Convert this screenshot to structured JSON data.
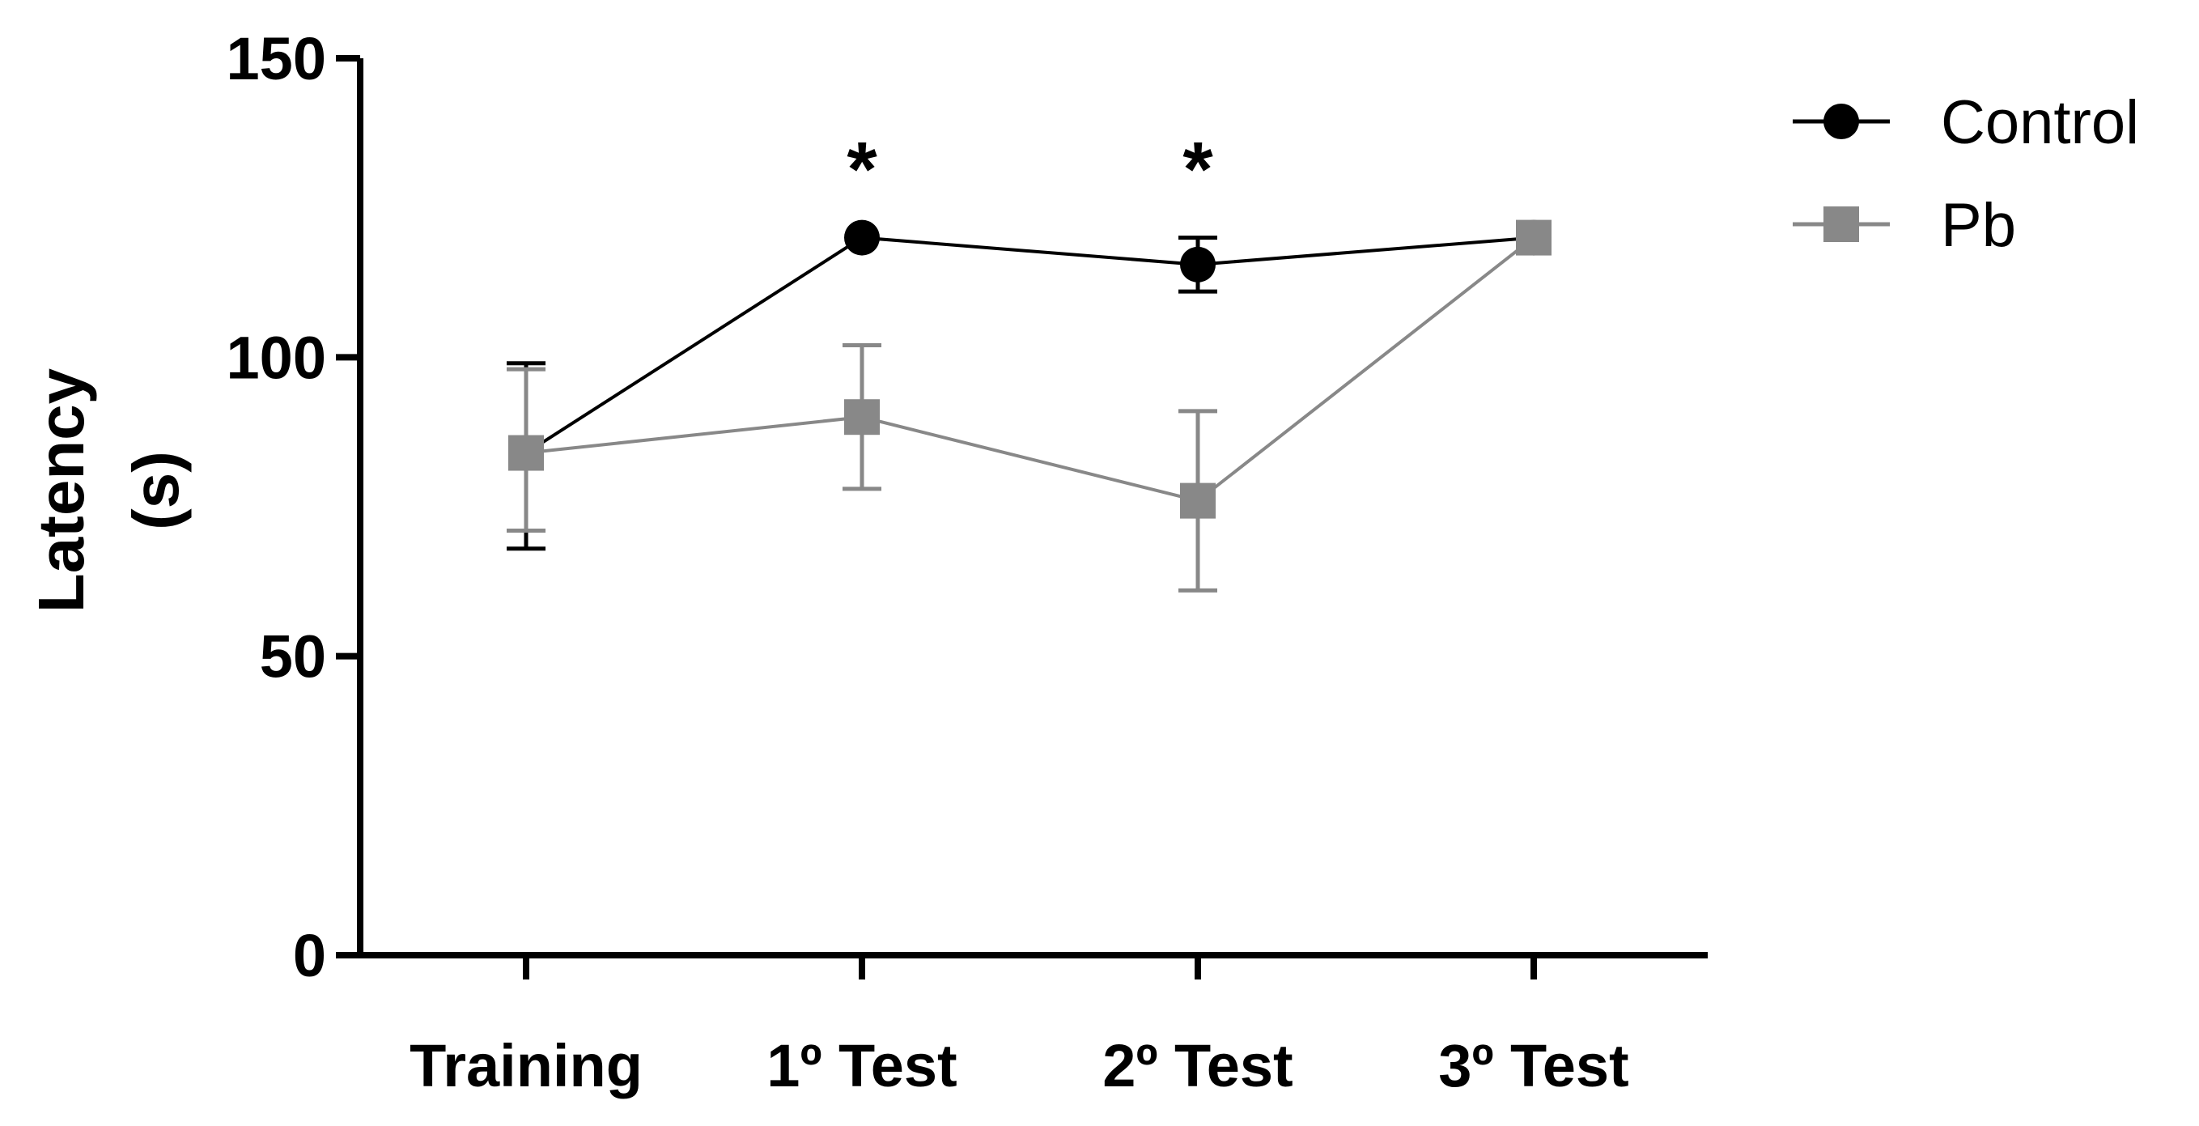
{
  "chart_data": {
    "type": "line",
    "title": "",
    "xlabel": "",
    "ylabel": [
      "Latency",
      "(s)"
    ],
    "categories": [
      "Training",
      "1º Test",
      "2º Test",
      "3º Test"
    ],
    "ylim": [
      0,
      150
    ],
    "yticks": [
      0,
      50,
      100,
      150
    ],
    "series": [
      {
        "name": "Control",
        "color": "#000000",
        "marker": "circle",
        "values": [
          84,
          120,
          115.5,
          120
        ],
        "err_upper": [
          99,
          120,
          120,
          120
        ],
        "err_lower": [
          68,
          120,
          111,
          120
        ]
      },
      {
        "name": "Pb",
        "color": "#888888",
        "marker": "square",
        "values": [
          84,
          90,
          76,
          120
        ],
        "err_upper": [
          98,
          102,
          91,
          120
        ],
        "err_lower": [
          71,
          78,
          61,
          120
        ]
      }
    ],
    "annotations": [
      {
        "category": "1º Test",
        "text": "*"
      },
      {
        "category": "2º Test",
        "text": "*"
      }
    ],
    "legend": "top-right",
    "grid": false
  }
}
